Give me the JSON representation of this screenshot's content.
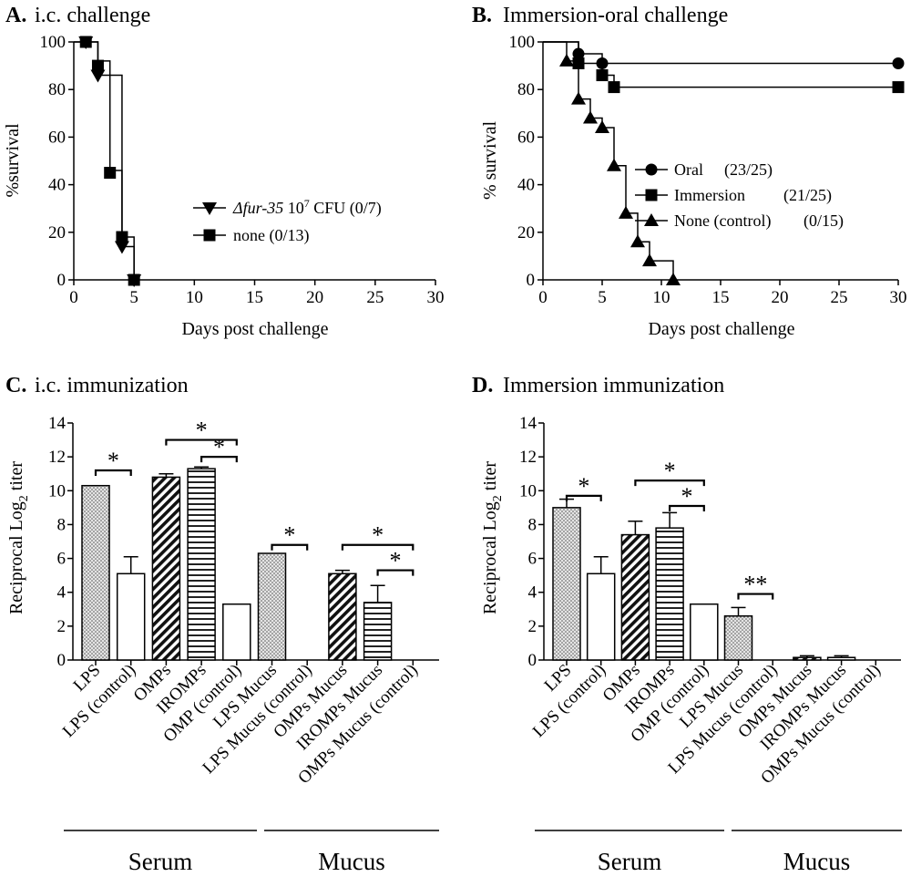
{
  "chart_data": [
    {
      "id": "A",
      "type": "line",
      "panel_letter": "A.",
      "title": "i.c. challenge",
      "xlabel": "Days post challenge",
      "ylabel": "%survival",
      "xlim": [
        0,
        30
      ],
      "ylim": [
        0,
        100
      ],
      "xticks": [
        "0",
        "5",
        "10",
        "15",
        "20",
        "25",
        "30"
      ],
      "yticks": [
        "0",
        "20",
        "40",
        "60",
        "80",
        "100"
      ],
      "series": [
        {
          "name_prefix": "Δfur-35",
          "name_mid": " 10",
          "name_sup": "7",
          "name_suffix": " CFU (0/7)",
          "marker": "triangle-down",
          "steps": [
            [
              0,
              100
            ],
            [
              1,
              100
            ],
            [
              2,
              100
            ],
            [
              2,
              86
            ],
            [
              4,
              86
            ],
            [
              4,
              14
            ],
            [
              5,
              14
            ],
            [
              5,
              0
            ]
          ],
          "points": [
            [
              1,
              100
            ],
            [
              2,
              86
            ],
            [
              4,
              14
            ],
            [
              5,
              0
            ]
          ]
        },
        {
          "name": "none (0/13)",
          "marker": "square",
          "steps": [
            [
              0,
              100
            ],
            [
              1,
              100
            ],
            [
              2,
              100
            ],
            [
              2,
              92
            ],
            [
              3,
              92
            ],
            [
              3,
              46
            ],
            [
              4,
              46
            ],
            [
              4,
              18
            ],
            [
              5,
              18
            ],
            [
              5,
              0
            ]
          ],
          "points": [
            [
              1,
              100
            ],
            [
              2,
              90
            ],
            [
              3,
              45
            ],
            [
              4,
              18
            ],
            [
              5,
              0
            ]
          ]
        }
      ]
    },
    {
      "id": "B",
      "type": "line",
      "panel_letter": "B.",
      "title": "Immersion-oral challenge",
      "xlabel": "Days post challenge",
      "ylabel": "% survival",
      "xlim": [
        0,
        30
      ],
      "ylim": [
        0,
        100
      ],
      "xticks": [
        "0",
        "5",
        "10",
        "15",
        "20",
        "25",
        "30"
      ],
      "yticks": [
        "0",
        "20",
        "40",
        "60",
        "80",
        "100"
      ],
      "series": [
        {
          "name": "Oral",
          "count": "(23/25)",
          "marker": "circle",
          "steps": [
            [
              0,
              100
            ],
            [
              3,
              100
            ],
            [
              3,
              95
            ],
            [
              5,
              95
            ],
            [
              5,
              91
            ],
            [
              30,
              91
            ]
          ],
          "points": [
            [
              3,
              95
            ],
            [
              5,
              91
            ],
            [
              30,
              91
            ]
          ]
        },
        {
          "name": "Immersion",
          "count": "(21/25)",
          "marker": "square",
          "steps": [
            [
              0,
              100
            ],
            [
              3,
              100
            ],
            [
              3,
              91
            ],
            [
              5,
              91
            ],
            [
              5,
              86
            ],
            [
              6,
              86
            ],
            [
              6,
              81
            ],
            [
              30,
              81
            ]
          ],
          "points": [
            [
              3,
              91
            ],
            [
              5,
              86
            ],
            [
              6,
              81
            ],
            [
              30,
              81
            ]
          ]
        },
        {
          "name": "None (control)",
          "count": "(0/15)",
          "marker": "triangle-up",
          "steps": [
            [
              0,
              100
            ],
            [
              2,
              100
            ],
            [
              2,
              92
            ],
            [
              3,
              92
            ],
            [
              3,
              76
            ],
            [
              4,
              76
            ],
            [
              4,
              68
            ],
            [
              5,
              68
            ],
            [
              5,
              64
            ],
            [
              6,
              64
            ],
            [
              6,
              48
            ],
            [
              7,
              48
            ],
            [
              7,
              28
            ],
            [
              8,
              28
            ],
            [
              8,
              16
            ],
            [
              9,
              16
            ],
            [
              9,
              8
            ],
            [
              11,
              8
            ],
            [
              11,
              0
            ]
          ],
          "points": [
            [
              2,
              92
            ],
            [
              3,
              76
            ],
            [
              4,
              68
            ],
            [
              5,
              64
            ],
            [
              6,
              48
            ],
            [
              7,
              28
            ],
            [
              8,
              16
            ],
            [
              9,
              8
            ],
            [
              11,
              0
            ]
          ]
        }
      ]
    },
    {
      "id": "C",
      "type": "bar",
      "panel_letter": "C.",
      "title": "i.c. immunization",
      "ylabel_main": "Reciprocal Log",
      "ylabel_sub": "2",
      "ylabel_tail": " titer",
      "ylim": [
        0,
        14
      ],
      "yticks": [
        "0",
        "2",
        "4",
        "6",
        "8",
        "10",
        "12",
        "14"
      ],
      "categories": [
        "LPS",
        "LPS (control)",
        "OMPs",
        "IROMPs",
        "OMP (control)",
        "LPS Mucus",
        "LPS Mucus (control)",
        "OMPs Mucus",
        "IROMPs Mucus",
        "OMPs Mucus (control)"
      ],
      "values": [
        10.3,
        5.1,
        10.8,
        11.3,
        3.3,
        6.3,
        0,
        5.1,
        3.4,
        0
      ],
      "errors": [
        0,
        1.0,
        0.2,
        0.1,
        0,
        0,
        0,
        0.2,
        1.0,
        0
      ],
      "patterns": [
        "dots",
        "none",
        "diag",
        "horiz",
        "none",
        "dots",
        "none",
        "diag",
        "horiz",
        "none"
      ],
      "brackets": [
        {
          "from": 0,
          "to": 1,
          "y": 11.2,
          "label": "*"
        },
        {
          "from": 2,
          "to": 4,
          "y": 13.0,
          "label": "*"
        },
        {
          "from": 3,
          "to": 4,
          "y": 12.0,
          "label": "*"
        },
        {
          "from": 5,
          "to": 6,
          "y": 6.8,
          "label": "*"
        },
        {
          "from": 7,
          "to": 9,
          "y": 6.8,
          "label": "*"
        },
        {
          "from": 8,
          "to": 9,
          "y": 5.3,
          "label": "*"
        }
      ],
      "groups": [
        {
          "label": "Serum",
          "from": 0,
          "to": 4
        },
        {
          "label": "Mucus",
          "from": 5,
          "to": 9
        }
      ]
    },
    {
      "id": "D",
      "type": "bar",
      "panel_letter": "D.",
      "title": "Immersion immunization",
      "ylabel_main": "Reciprocal Log",
      "ylabel_sub": "2",
      "ylabel_tail": " titer",
      "ylim": [
        0,
        14
      ],
      "yticks": [
        "0",
        "2",
        "4",
        "6",
        "8",
        "10",
        "12",
        "14"
      ],
      "categories": [
        "LPS",
        "LPS (control)",
        "OMPs",
        "IROMPs",
        "OMP (control)",
        "LPS Mucus",
        "LPS Mucus (control)",
        "OMPs Mucus",
        "IROMPs Mucus",
        "OMPs Mucus (control)"
      ],
      "values": [
        9.0,
        5.1,
        7.4,
        7.8,
        3.3,
        2.6,
        0,
        0.15,
        0.15,
        0
      ],
      "errors": [
        0.5,
        1.0,
        0.8,
        0.9,
        0,
        0.5,
        0,
        0.1,
        0.1,
        0
      ],
      "patterns": [
        "dots",
        "none",
        "diag",
        "horiz",
        "none",
        "dots",
        "none",
        "diag",
        "horiz",
        "none"
      ],
      "brackets": [
        {
          "from": 0,
          "to": 1,
          "y": 9.7,
          "label": "*"
        },
        {
          "from": 2,
          "to": 4,
          "y": 10.6,
          "label": "*"
        },
        {
          "from": 3,
          "to": 4,
          "y": 9.1,
          "label": "*"
        },
        {
          "from": 5,
          "to": 6,
          "y": 3.9,
          "label": "**"
        }
      ],
      "groups": [
        {
          "label": "Serum",
          "from": 0,
          "to": 4
        },
        {
          "label": "Mucus",
          "from": 5,
          "to": 9
        }
      ]
    }
  ]
}
